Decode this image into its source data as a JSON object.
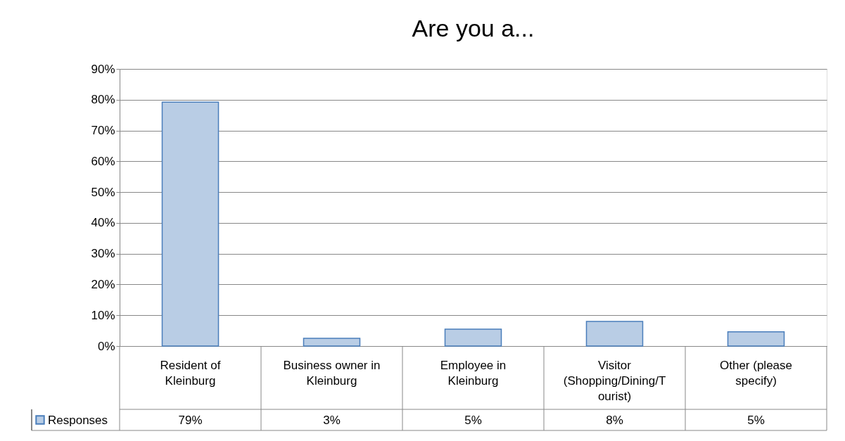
{
  "chart_data": {
    "type": "bar",
    "title": "Are you a...",
    "categories": [
      "Resident of Kleinburg",
      "Business owner in Kleinburg",
      "Employee in Kleinburg",
      "Visitor (Shopping/Dining/Tourist)",
      "Other (please specify)"
    ],
    "series": [
      {
        "name": "Responses",
        "color": "#b9cde5",
        "values": [
          79.2,
          2.5,
          5.5,
          8.0,
          4.6
        ],
        "value_labels": [
          "79%",
          "3%",
          "5%",
          "8%",
          "5%"
        ]
      }
    ],
    "ylim": [
      0,
      90
    ],
    "yticks": [
      {
        "value": 0,
        "label": "0%"
      },
      {
        "value": 10,
        "label": "10%"
      },
      {
        "value": 20,
        "label": "20%"
      },
      {
        "value": 30,
        "label": "30%"
      },
      {
        "value": 40,
        "label": "40%"
      },
      {
        "value": 50,
        "label": "50%"
      },
      {
        "value": 60,
        "label": "60%"
      },
      {
        "value": 70,
        "label": "70%"
      },
      {
        "value": 80,
        "label": "80%"
      },
      {
        "value": 90,
        "label": "90%"
      }
    ],
    "grid": "y",
    "legend": "bottom"
  }
}
